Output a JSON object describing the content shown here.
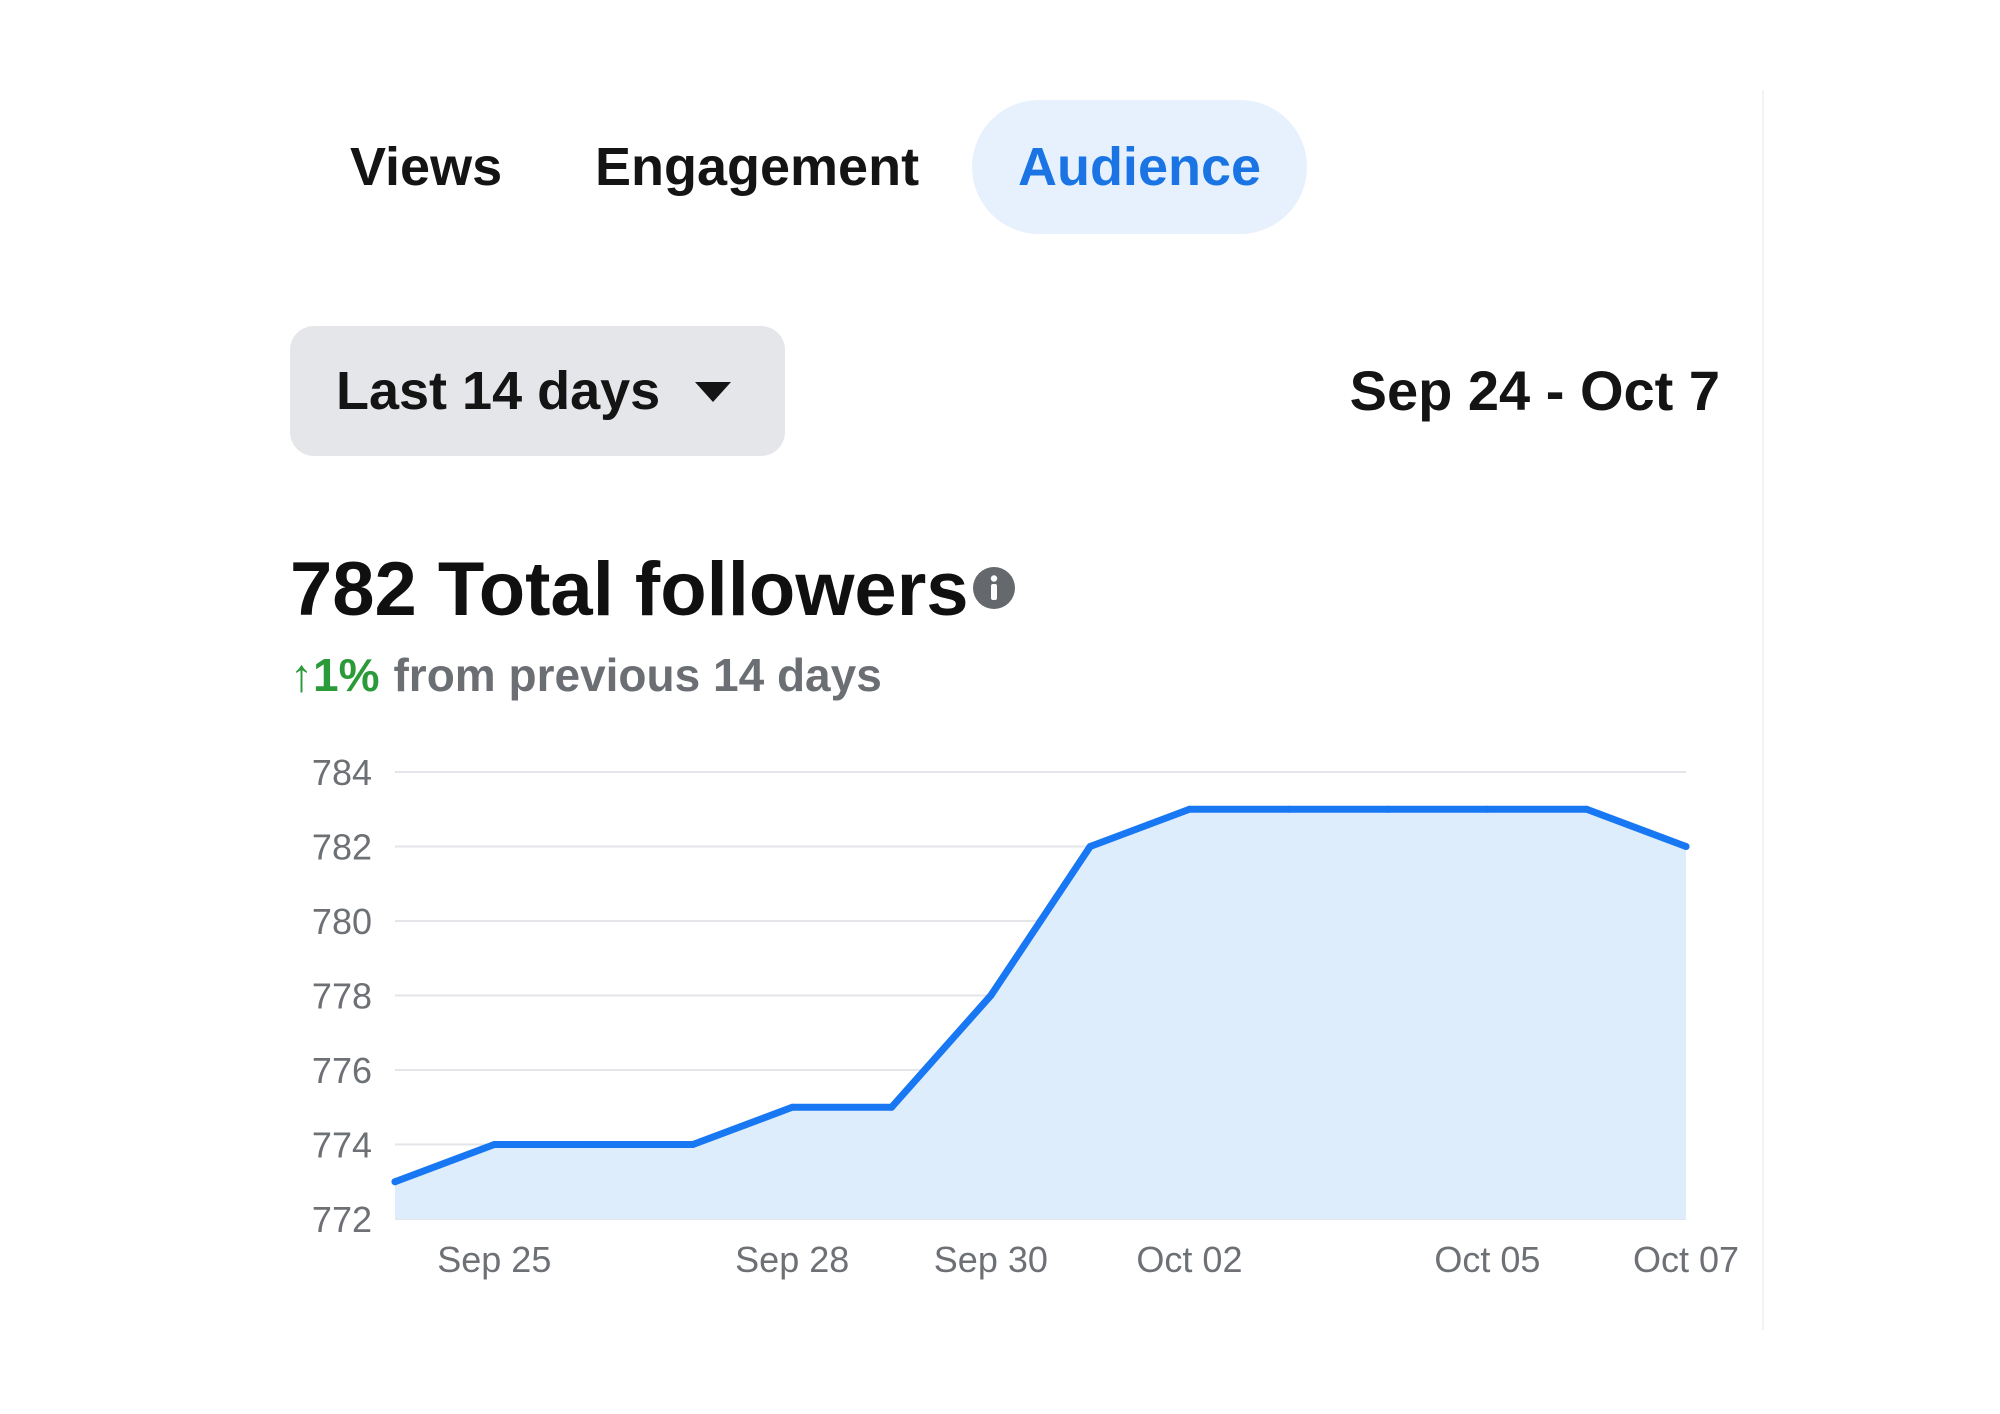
{
  "tabs": [
    {
      "label": "Views",
      "active": false
    },
    {
      "label": "Engagement",
      "active": false
    },
    {
      "label": "Audience",
      "active": true
    }
  ],
  "filter": {
    "range_label": "Last 14 days",
    "date_range": "Sep 24 - Oct 7"
  },
  "summary": {
    "headline": "782 Total followers",
    "change_arrow": "↑",
    "change_pct": "1%",
    "change_text": "from previous 14 days"
  },
  "icons": {
    "info": "info-icon",
    "dropdown": "caret-down-icon"
  },
  "colors": {
    "accent": "#1b74e4",
    "line": "#1877f2",
    "area_fill": "#deedfc",
    "positive": "#2b9b3a",
    "active_tab_bg": "#e6f1fd",
    "dropdown_bg": "#e4e6e9"
  },
  "chart_data": {
    "type": "area",
    "x": [
      "Sep 24",
      "Sep 25",
      "Sep 26",
      "Sep 27",
      "Sep 28",
      "Sep 29",
      "Sep 30",
      "Oct 01",
      "Oct 02",
      "Oct 03",
      "Oct 04",
      "Oct 05",
      "Oct 06",
      "Oct 07"
    ],
    "series": [
      {
        "values": [
          773,
          774,
          774,
          774,
          775,
          775,
          778,
          782,
          783,
          783,
          783,
          783,
          783,
          782
        ]
      }
    ],
    "x_tick_labels": [
      "Sep 25",
      "Sep 28",
      "Sep 30",
      "Oct 02",
      "Oct 05",
      "Oct 07"
    ],
    "y_ticks": [
      772,
      774,
      776,
      778,
      780,
      782,
      784
    ],
    "ylim": [
      772,
      784
    ],
    "grid": true,
    "legend": "none"
  }
}
